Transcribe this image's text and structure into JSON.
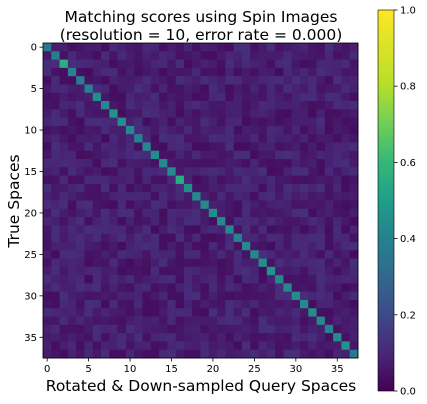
{
  "chart_data": {
    "type": "heatmap",
    "title_line1": "Matching scores using Spin Images",
    "title_line2": "(resolution = 10, error rate = 0.000)",
    "xlabel": "Rotated & Down-sampled Query Spaces",
    "ylabel": "True Spaces",
    "rows": 38,
    "cols": 38,
    "x_ticks": [
      "0",
      "5",
      "10",
      "15",
      "20",
      "25",
      "30",
      "35"
    ],
    "y_ticks": [
      "0",
      "5",
      "10",
      "15",
      "20",
      "25",
      "30",
      "35"
    ],
    "colorbar_ticks": [
      "0.0",
      "0.2",
      "0.4",
      "0.6",
      "0.8",
      "1.0"
    ],
    "colorbar_range": [
      0.0,
      1.0
    ],
    "colormap": "viridis",
    "diagonal_values": [
      0.36,
      0.38,
      0.56,
      0.4,
      0.38,
      0.4,
      0.44,
      0.42,
      0.46,
      0.44,
      0.42,
      0.4,
      0.42,
      0.44,
      0.42,
      0.44,
      0.56,
      0.44,
      0.42,
      0.42,
      0.44,
      0.42,
      0.42,
      0.4,
      0.42,
      0.42,
      0.44,
      0.46,
      0.42,
      0.42,
      0.44,
      0.42,
      0.44,
      0.42,
      0.4,
      0.44,
      0.46,
      0.36
    ],
    "off_diagonal_range": [
      0.03,
      0.12
    ]
  }
}
